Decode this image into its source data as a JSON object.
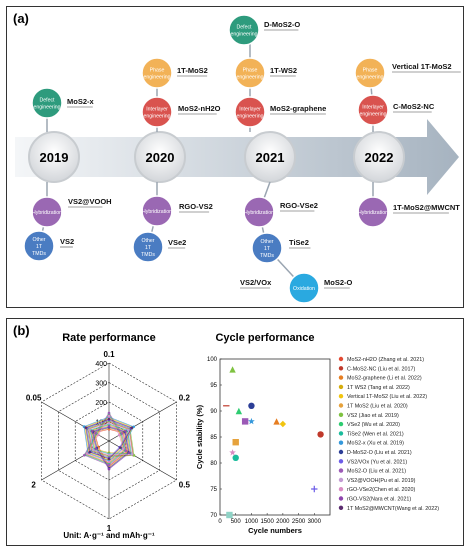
{
  "panel_a": {
    "label": "(a)",
    "years": [
      "2019",
      "2020",
      "2021",
      "2022"
    ],
    "nodes": [
      {
        "id": "n-2019-defect",
        "type": "Defect engineering",
        "text": "MoS2-x",
        "color": "#2e9b7d"
      },
      {
        "id": "n-2019-hyb",
        "type": "Hybridization",
        "text": "VS2@VOOH",
        "color": "#9a68b3"
      },
      {
        "id": "n-2019-other",
        "type": "Other 1T TMDs",
        "text": "VS2",
        "color": "#4a7cc2"
      },
      {
        "id": "n-2020-phase",
        "type": "Phase engineering",
        "text": "1T-MoS2",
        "color": "#f2b257"
      },
      {
        "id": "n-2020-inter",
        "type": "Interlayer engineering",
        "text": "MoS2-nH2O",
        "color": "#d9534f"
      },
      {
        "id": "n-2020-hyb",
        "type": "Hybridization",
        "text": "RGO-VS2",
        "color": "#9a68b3"
      },
      {
        "id": "n-2020-other",
        "type": "Other 1T TMDs",
        "text": "VSe2",
        "color": "#4a7cc2"
      },
      {
        "id": "n-2021-defect",
        "type": "Defect engineering",
        "text": "D-MoS2-O",
        "color": "#2e9b7d"
      },
      {
        "id": "n-2021-phase",
        "type": "Phase engineering",
        "text": "1T-WS2",
        "color": "#f2b257"
      },
      {
        "id": "n-2021-inter",
        "type": "Interlayer engineering",
        "text": "MoS2-graphene",
        "color": "#d9534f"
      },
      {
        "id": "n-2021-hyb",
        "type": "Hybridization",
        "text": "RGO-VSe2",
        "color": "#9a68b3"
      },
      {
        "id": "n-2021-other",
        "type": "Other 1T TMDs",
        "text": "TiSe2",
        "color": "#4a7cc2"
      },
      {
        "id": "n-2021-oxid",
        "type": "Oxidation",
        "text": "MoS2-O",
        "color": "#2aa9e0"
      },
      {
        "id": "n-2021-extra",
        "type": "",
        "text": "VS2/VOx",
        "color": ""
      },
      {
        "id": "n-2022-phase",
        "type": "Phase engineering",
        "text": "Vertical 1T-MoS2",
        "color": "#f2b257"
      },
      {
        "id": "n-2022-inter",
        "type": "Interlayer engineering",
        "text": "C-MoS2-NC",
        "color": "#d9534f"
      },
      {
        "id": "n-2022-hyb",
        "type": "Hybridization",
        "text": "1T-MoS2@MWCNT",
        "color": "#9a68b3"
      }
    ]
  },
  "panel_b": {
    "label": "(b)",
    "rate_title": "Rate performance",
    "cycle_title": "Cycle performance",
    "radar_axes": [
      "0.1",
      "0.2",
      "0.5",
      "1",
      "2",
      "0.05"
    ],
    "radar_ticks": [
      "100",
      "200",
      "300",
      "400"
    ],
    "unit_label": "Unit: A·g⁻¹ and mAh·g⁻¹",
    "legend": [
      {
        "name": "MoS2-nH2O (Zhang et al. 2021)",
        "color": "#e34a33"
      },
      {
        "name": "C-MoS2-NC (Liu et al. 2017)",
        "color": "#c0392b"
      },
      {
        "name": "MoS2-graphene (Li et al. 2022)",
        "color": "#e67e22"
      },
      {
        "name": "1T WS2 (Tang et al. 2022)",
        "color": "#d4ac0d"
      },
      {
        "name": "Vertical 1T-MoS2 (Liu et al. 2022)",
        "color": "#f1c40f"
      },
      {
        "name": "1T MoS2 (Liu et al. 2020)",
        "color": "#e6a23c"
      },
      {
        "name": "VS2 (Jiao et al. 2019)",
        "color": "#7fc241"
      },
      {
        "name": "VSe2 (Wu et al. 2020)",
        "color": "#2ecc71"
      },
      {
        "name": "TiSe2 (Wen et al. 2021)",
        "color": "#1abc9c"
      },
      {
        "name": "MoS2-x (Xu et al. 2019)",
        "color": "#3498db"
      },
      {
        "name": "D-MoS2-O (Liu et al. 2021)",
        "color": "#2c3e97"
      },
      {
        "name": "VS2/VOx (Yu et al. 2021)",
        "color": "#6c5ce7"
      },
      {
        "name": "MoS2-O (Liu et al. 2021)",
        "color": "#9b59b6"
      },
      {
        "name": "VS2@VOOH(Pu et al. 2019)",
        "color": "#c39bd3"
      },
      {
        "name": "rGO-VSe2(Chen et al. 2020)",
        "color": "#d98cc4"
      },
      {
        "name": "rGO-VS2(Nara et al. 2021)",
        "color": "#8e44ad"
      },
      {
        "name": "1T MoS2@MWCNT(Wang et al. 2022)",
        "color": "#5b2c6f"
      }
    ]
  },
  "chart_data": [
    {
      "type": "radar",
      "title": "Rate performance",
      "axes": [
        "0.1",
        "0.2",
        "0.5",
        "1",
        "2",
        "0.05"
      ],
      "range": [
        0,
        400
      ],
      "note": "series clustered near centre"
    },
    {
      "type": "scatter",
      "title": "Cycle performance",
      "xlabel": "Cycle numbers",
      "ylabel": "Cycle stability (%)",
      "xlim": [
        0,
        3500
      ],
      "ylim": [
        70,
        100
      ],
      "xticks": [
        0,
        500,
        1000,
        1500,
        2000,
        2500,
        3000,
        3500
      ],
      "yticks": [
        70,
        75,
        80,
        85,
        90,
        95,
        100
      ],
      "points": [
        {
          "x": 400,
          "y": 98,
          "color": "#7fc241",
          "marker": "tri"
        },
        {
          "x": 200,
          "y": 91,
          "color": "#c0392b",
          "marker": "line"
        },
        {
          "x": 1000,
          "y": 91,
          "color": "#2c3e97",
          "marker": "circ"
        },
        {
          "x": 600,
          "y": 90,
          "color": "#2ecc71",
          "marker": "tri"
        },
        {
          "x": 1000,
          "y": 88,
          "color": "#3498db",
          "marker": "star"
        },
        {
          "x": 800,
          "y": 88,
          "color": "#9b59b6",
          "marker": "sq"
        },
        {
          "x": 1800,
          "y": 88,
          "color": "#e67e22",
          "marker": "tri"
        },
        {
          "x": 2000,
          "y": 87.5,
          "color": "#f1c40f",
          "marker": "dia"
        },
        {
          "x": 500,
          "y": 84,
          "color": "#e6a23c",
          "marker": "sq"
        },
        {
          "x": 3200,
          "y": 85.5,
          "color": "#c0392b",
          "marker": "circ"
        },
        {
          "x": 500,
          "y": 81,
          "color": "#1abc9c",
          "marker": "circ"
        },
        {
          "x": 400,
          "y": 82,
          "color": "#d98cc4",
          "marker": "star"
        },
        {
          "x": 3000,
          "y": 75,
          "color": "#6c5ce7",
          "marker": "plus"
        },
        {
          "x": 300,
          "y": 70,
          "color": "#8fd3c6",
          "marker": "sq"
        }
      ]
    }
  ]
}
